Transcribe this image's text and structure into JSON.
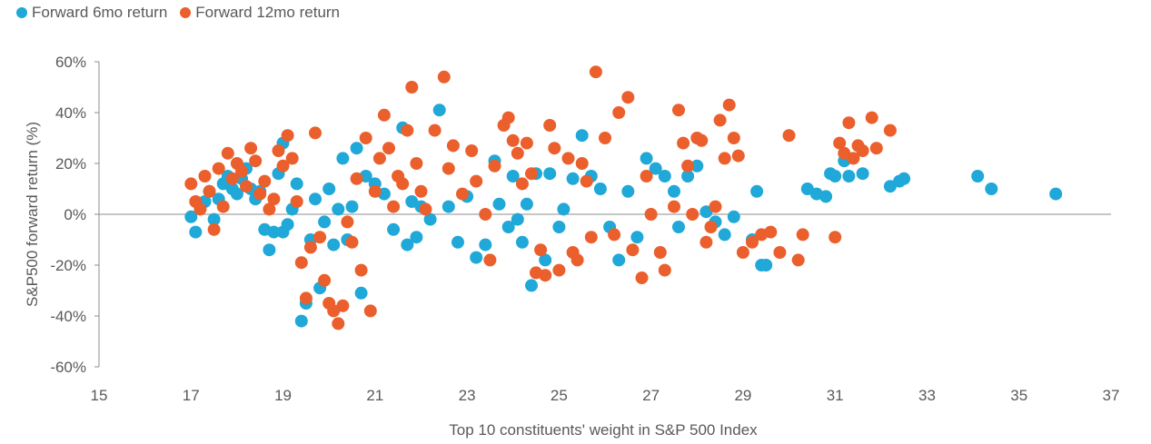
{
  "legend": {
    "series1": "Forward 6mo return",
    "series2": "Forward 12mo return"
  },
  "colors": {
    "series1": "#1FA8D8",
    "series2": "#EB5F2C",
    "axis": "#8c8c8c",
    "text": "#595959"
  },
  "chart_data": {
    "type": "scatter",
    "xlabel": "Top 10 constituents' weight in S&P 500 Index",
    "ylabel": "S&P500 forward return (%)",
    "xlim": [
      15,
      37
    ],
    "ylim": [
      -60,
      60
    ],
    "xticks": [
      "15",
      "17",
      "19",
      "21",
      "23",
      "25",
      "27",
      "29",
      "31",
      "33",
      "35",
      "37"
    ],
    "yticks": [
      "60%",
      "40%",
      "20%",
      "0%",
      "-20%",
      "-40%",
      "-60%"
    ],
    "legend_position": "top-left",
    "series": [
      {
        "name": "Forward 6mo return",
        "color": "#1FA8D8",
        "points": [
          [
            17.0,
            -1
          ],
          [
            17.1,
            -7
          ],
          [
            17.2,
            3
          ],
          [
            17.3,
            5
          ],
          [
            17.4,
            9
          ],
          [
            17.5,
            -2
          ],
          [
            17.6,
            6
          ],
          [
            17.7,
            12
          ],
          [
            17.8,
            15
          ],
          [
            17.9,
            10
          ],
          [
            18.0,
            8
          ],
          [
            18.1,
            14
          ],
          [
            18.2,
            18
          ],
          [
            18.3,
            10
          ],
          [
            18.4,
            6
          ],
          [
            18.5,
            9
          ],
          [
            18.6,
            -6
          ],
          [
            18.7,
            -14
          ],
          [
            18.8,
            -7
          ],
          [
            18.9,
            16
          ],
          [
            19.0,
            28
          ],
          [
            19.0,
            -7
          ],
          [
            19.1,
            -4
          ],
          [
            19.2,
            2
          ],
          [
            19.3,
            12
          ],
          [
            19.4,
            -42
          ],
          [
            19.5,
            -35
          ],
          [
            19.6,
            -10
          ],
          [
            19.7,
            6
          ],
          [
            19.8,
            -29
          ],
          [
            19.9,
            -3
          ],
          [
            20.0,
            10
          ],
          [
            20.1,
            -12
          ],
          [
            20.2,
            2
          ],
          [
            20.3,
            22
          ],
          [
            20.4,
            -10
          ],
          [
            20.5,
            3
          ],
          [
            20.6,
            26
          ],
          [
            20.7,
            -31
          ],
          [
            20.8,
            15
          ],
          [
            21.0,
            12
          ],
          [
            21.2,
            8
          ],
          [
            21.4,
            -6
          ],
          [
            21.6,
            34
          ],
          [
            21.7,
            -12
          ],
          [
            21.8,
            5
          ],
          [
            21.9,
            -9
          ],
          [
            22.0,
            3
          ],
          [
            22.2,
            -2
          ],
          [
            22.4,
            41
          ],
          [
            22.6,
            3
          ],
          [
            22.8,
            -11
          ],
          [
            23.0,
            7
          ],
          [
            23.2,
            -17
          ],
          [
            23.4,
            -12
          ],
          [
            23.6,
            21
          ],
          [
            23.7,
            4
          ],
          [
            23.9,
            -5
          ],
          [
            24.0,
            15
          ],
          [
            24.1,
            -2
          ],
          [
            24.2,
            -11
          ],
          [
            24.3,
            4
          ],
          [
            24.4,
            -28
          ],
          [
            24.5,
            16
          ],
          [
            24.7,
            -18
          ],
          [
            24.8,
            16
          ],
          [
            25.0,
            -5
          ],
          [
            25.1,
            2
          ],
          [
            25.3,
            14
          ],
          [
            25.5,
            31
          ],
          [
            25.7,
            15
          ],
          [
            25.9,
            10
          ],
          [
            26.1,
            -5
          ],
          [
            26.3,
            -18
          ],
          [
            26.5,
            9
          ],
          [
            26.7,
            -9
          ],
          [
            26.9,
            22
          ],
          [
            27.1,
            18
          ],
          [
            27.3,
            15
          ],
          [
            27.5,
            9
          ],
          [
            27.6,
            -5
          ],
          [
            27.8,
            15
          ],
          [
            28.0,
            19
          ],
          [
            28.2,
            1
          ],
          [
            28.4,
            -3
          ],
          [
            28.6,
            -8
          ],
          [
            28.8,
            -1
          ],
          [
            29.2,
            -10
          ],
          [
            29.3,
            9
          ],
          [
            29.4,
            -20
          ],
          [
            29.5,
            -20
          ],
          [
            30.4,
            10
          ],
          [
            30.6,
            8
          ],
          [
            30.8,
            7
          ],
          [
            30.9,
            16
          ],
          [
            31.0,
            15
          ],
          [
            31.2,
            21
          ],
          [
            31.3,
            15
          ],
          [
            31.6,
            16
          ],
          [
            32.2,
            11
          ],
          [
            32.4,
            13
          ],
          [
            32.5,
            14
          ],
          [
            34.1,
            15
          ],
          [
            34.4,
            10
          ],
          [
            35.8,
            8
          ]
        ]
      },
      {
        "name": "Forward 12mo return",
        "color": "#EB5F2C",
        "points": [
          [
            17.0,
            12
          ],
          [
            17.1,
            5
          ],
          [
            17.2,
            2
          ],
          [
            17.3,
            15
          ],
          [
            17.4,
            9
          ],
          [
            17.5,
            -6
          ],
          [
            17.6,
            18
          ],
          [
            17.7,
            3
          ],
          [
            17.8,
            24
          ],
          [
            17.9,
            14
          ],
          [
            18.0,
            20
          ],
          [
            18.1,
            17
          ],
          [
            18.2,
            11
          ],
          [
            18.3,
            26
          ],
          [
            18.4,
            21
          ],
          [
            18.5,
            8
          ],
          [
            18.6,
            13
          ],
          [
            18.7,
            2
          ],
          [
            18.8,
            6
          ],
          [
            18.9,
            25
          ],
          [
            19.0,
            19
          ],
          [
            19.1,
            31
          ],
          [
            19.2,
            22
          ],
          [
            19.3,
            5
          ],
          [
            19.4,
            -19
          ],
          [
            19.5,
            -33
          ],
          [
            19.6,
            -13
          ],
          [
            19.7,
            32
          ],
          [
            19.8,
            -9
          ],
          [
            19.9,
            -26
          ],
          [
            20.0,
            -35
          ],
          [
            20.1,
            -38
          ],
          [
            20.2,
            -43
          ],
          [
            20.3,
            -36
          ],
          [
            20.4,
            -3
          ],
          [
            20.5,
            -11
          ],
          [
            20.6,
            14
          ],
          [
            20.7,
            -22
          ],
          [
            20.8,
            30
          ],
          [
            20.9,
            -38
          ],
          [
            21.0,
            9
          ],
          [
            21.1,
            22
          ],
          [
            21.2,
            39
          ],
          [
            21.3,
            26
          ],
          [
            21.4,
            3
          ],
          [
            21.5,
            15
          ],
          [
            21.6,
            12
          ],
          [
            21.7,
            33
          ],
          [
            21.8,
            50
          ],
          [
            21.9,
            20
          ],
          [
            22.0,
            9
          ],
          [
            22.1,
            2
          ],
          [
            22.3,
            33
          ],
          [
            22.5,
            54
          ],
          [
            22.6,
            18
          ],
          [
            22.7,
            27
          ],
          [
            22.9,
            8
          ],
          [
            23.1,
            25
          ],
          [
            23.2,
            13
          ],
          [
            23.4,
            0
          ],
          [
            23.5,
            -18
          ],
          [
            23.6,
            19
          ],
          [
            23.8,
            35
          ],
          [
            23.9,
            38
          ],
          [
            24.0,
            29
          ],
          [
            24.1,
            24
          ],
          [
            24.2,
            12
          ],
          [
            24.3,
            28
          ],
          [
            24.4,
            16
          ],
          [
            24.5,
            -23
          ],
          [
            24.6,
            -14
          ],
          [
            24.7,
            -24
          ],
          [
            24.8,
            35
          ],
          [
            24.9,
            26
          ],
          [
            25.0,
            -22
          ],
          [
            25.2,
            22
          ],
          [
            25.3,
            -15
          ],
          [
            25.4,
            -18
          ],
          [
            25.5,
            20
          ],
          [
            25.6,
            13
          ],
          [
            25.7,
            -9
          ],
          [
            25.8,
            56
          ],
          [
            26.0,
            30
          ],
          [
            26.2,
            -8
          ],
          [
            26.3,
            40
          ],
          [
            26.5,
            46
          ],
          [
            26.6,
            -14
          ],
          [
            26.8,
            -25
          ],
          [
            26.9,
            15
          ],
          [
            27.0,
            0
          ],
          [
            27.2,
            -15
          ],
          [
            27.3,
            -22
          ],
          [
            27.5,
            3
          ],
          [
            27.6,
            41
          ],
          [
            27.7,
            28
          ],
          [
            27.8,
            19
          ],
          [
            27.9,
            0
          ],
          [
            28.0,
            30
          ],
          [
            28.1,
            29
          ],
          [
            28.2,
            -11
          ],
          [
            28.3,
            -5
          ],
          [
            28.4,
            3
          ],
          [
            28.5,
            37
          ],
          [
            28.6,
            22
          ],
          [
            28.7,
            43
          ],
          [
            28.8,
            30
          ],
          [
            28.9,
            23
          ],
          [
            29.0,
            -15
          ],
          [
            29.2,
            -11
          ],
          [
            29.4,
            -8
          ],
          [
            29.6,
            -7
          ],
          [
            29.8,
            -15
          ],
          [
            30.0,
            31
          ],
          [
            30.2,
            -18
          ],
          [
            30.3,
            -8
          ],
          [
            31.0,
            -9
          ],
          [
            31.1,
            28
          ],
          [
            31.2,
            24
          ],
          [
            31.3,
            36
          ],
          [
            31.4,
            22
          ],
          [
            31.5,
            27
          ],
          [
            31.6,
            25
          ],
          [
            31.8,
            38
          ],
          [
            31.9,
            26
          ],
          [
            32.2,
            33
          ]
        ]
      }
    ]
  }
}
